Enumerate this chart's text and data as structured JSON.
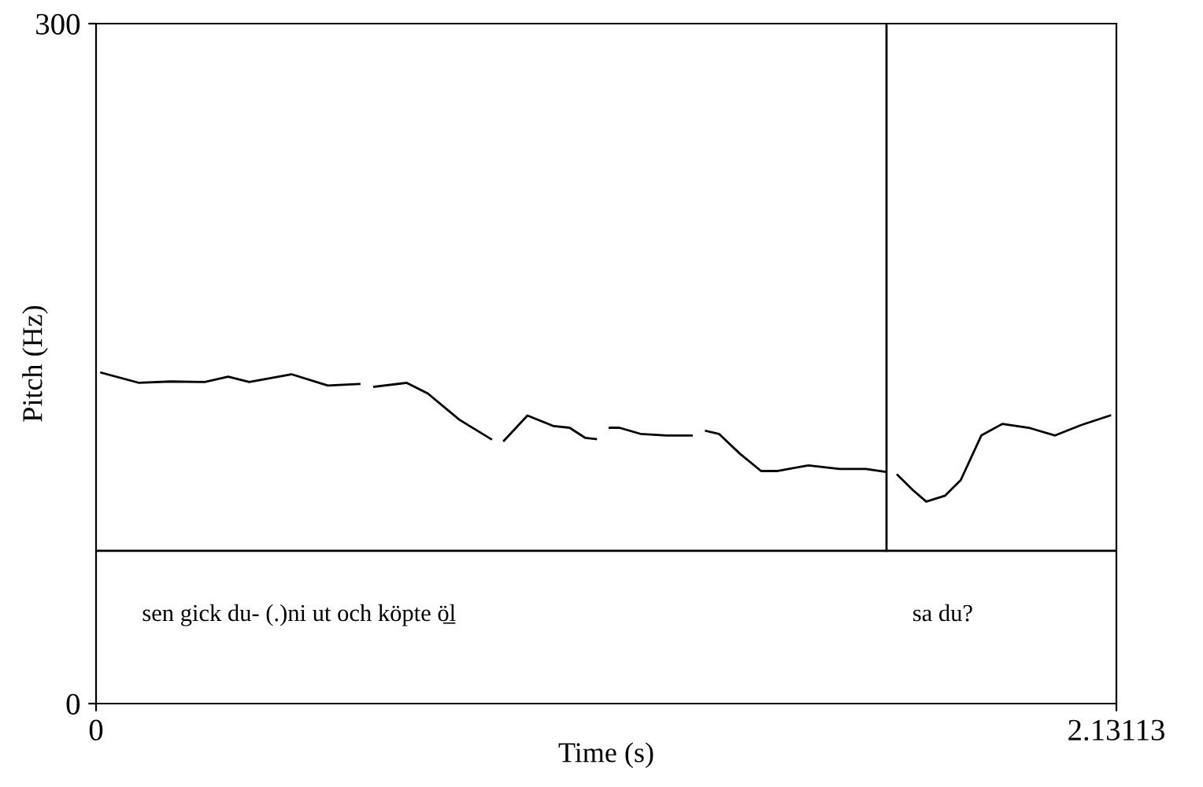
{
  "chart_data": {
    "type": "line",
    "xlabel": "Time (s)",
    "ylabel": "Pitch (Hz)",
    "xlim": [
      0,
      2.13113
    ],
    "ylim": [
      0,
      300
    ],
    "xticks": [
      0,
      2.13113
    ],
    "yticks": [
      0,
      300
    ],
    "grid": false,
    "legend": false,
    "marker": "none",
    "line_style": "solid",
    "series": [
      {
        "color": "#000000",
        "x": [
          0.011,
          0.09,
          0.156,
          0.227,
          0.276,
          0.32,
          0.408,
          0.484,
          0.55,
          0.565,
          0.581,
          0.649,
          0.693,
          0.759,
          0.825,
          0.838,
          0.852,
          0.901,
          0.956,
          0.989,
          1.022,
          1.044,
          1.058,
          1.073,
          1.093,
          1.137,
          1.192,
          1.244,
          1.259,
          1.274,
          1.301,
          1.345,
          1.389,
          1.422,
          1.488,
          1.553,
          1.608,
          1.647,
          1.66,
          1.674,
          1.707,
          1.734,
          1.773,
          1.806,
          1.849,
          1.893,
          1.948,
          2.003,
          2.058,
          2.118
        ],
        "values": [
          146.0,
          141.5,
          142.1,
          141.9,
          144.2,
          141.9,
          145.3,
          140.3,
          141.0,
          null,
          139.8,
          141.5,
          136.8,
          125.2,
          116.7,
          null,
          116.0,
          127.1,
          122.4,
          121.7,
          117.2,
          116.7,
          null,
          121.7,
          121.7,
          119.0,
          118.3,
          118.3,
          null,
          120.3,
          119.0,
          110.2,
          102.6,
          102.6,
          105.1,
          103.5,
          103.5,
          102.3,
          null,
          100.9,
          94.0,
          89.1,
          91.7,
          98.6,
          118.3,
          123.4,
          121.7,
          118.3,
          122.9,
          127.1
        ]
      }
    ],
    "ref_lines": [
      {
        "axis": "y",
        "value": 67.4,
        "color": "#000000"
      },
      {
        "axis": "x",
        "value": 1.651,
        "color": "#000000"
      }
    ],
    "annotations": [
      "sen gick du- (.)ni ut och köpte ö̲l",
      "sa du?"
    ]
  }
}
